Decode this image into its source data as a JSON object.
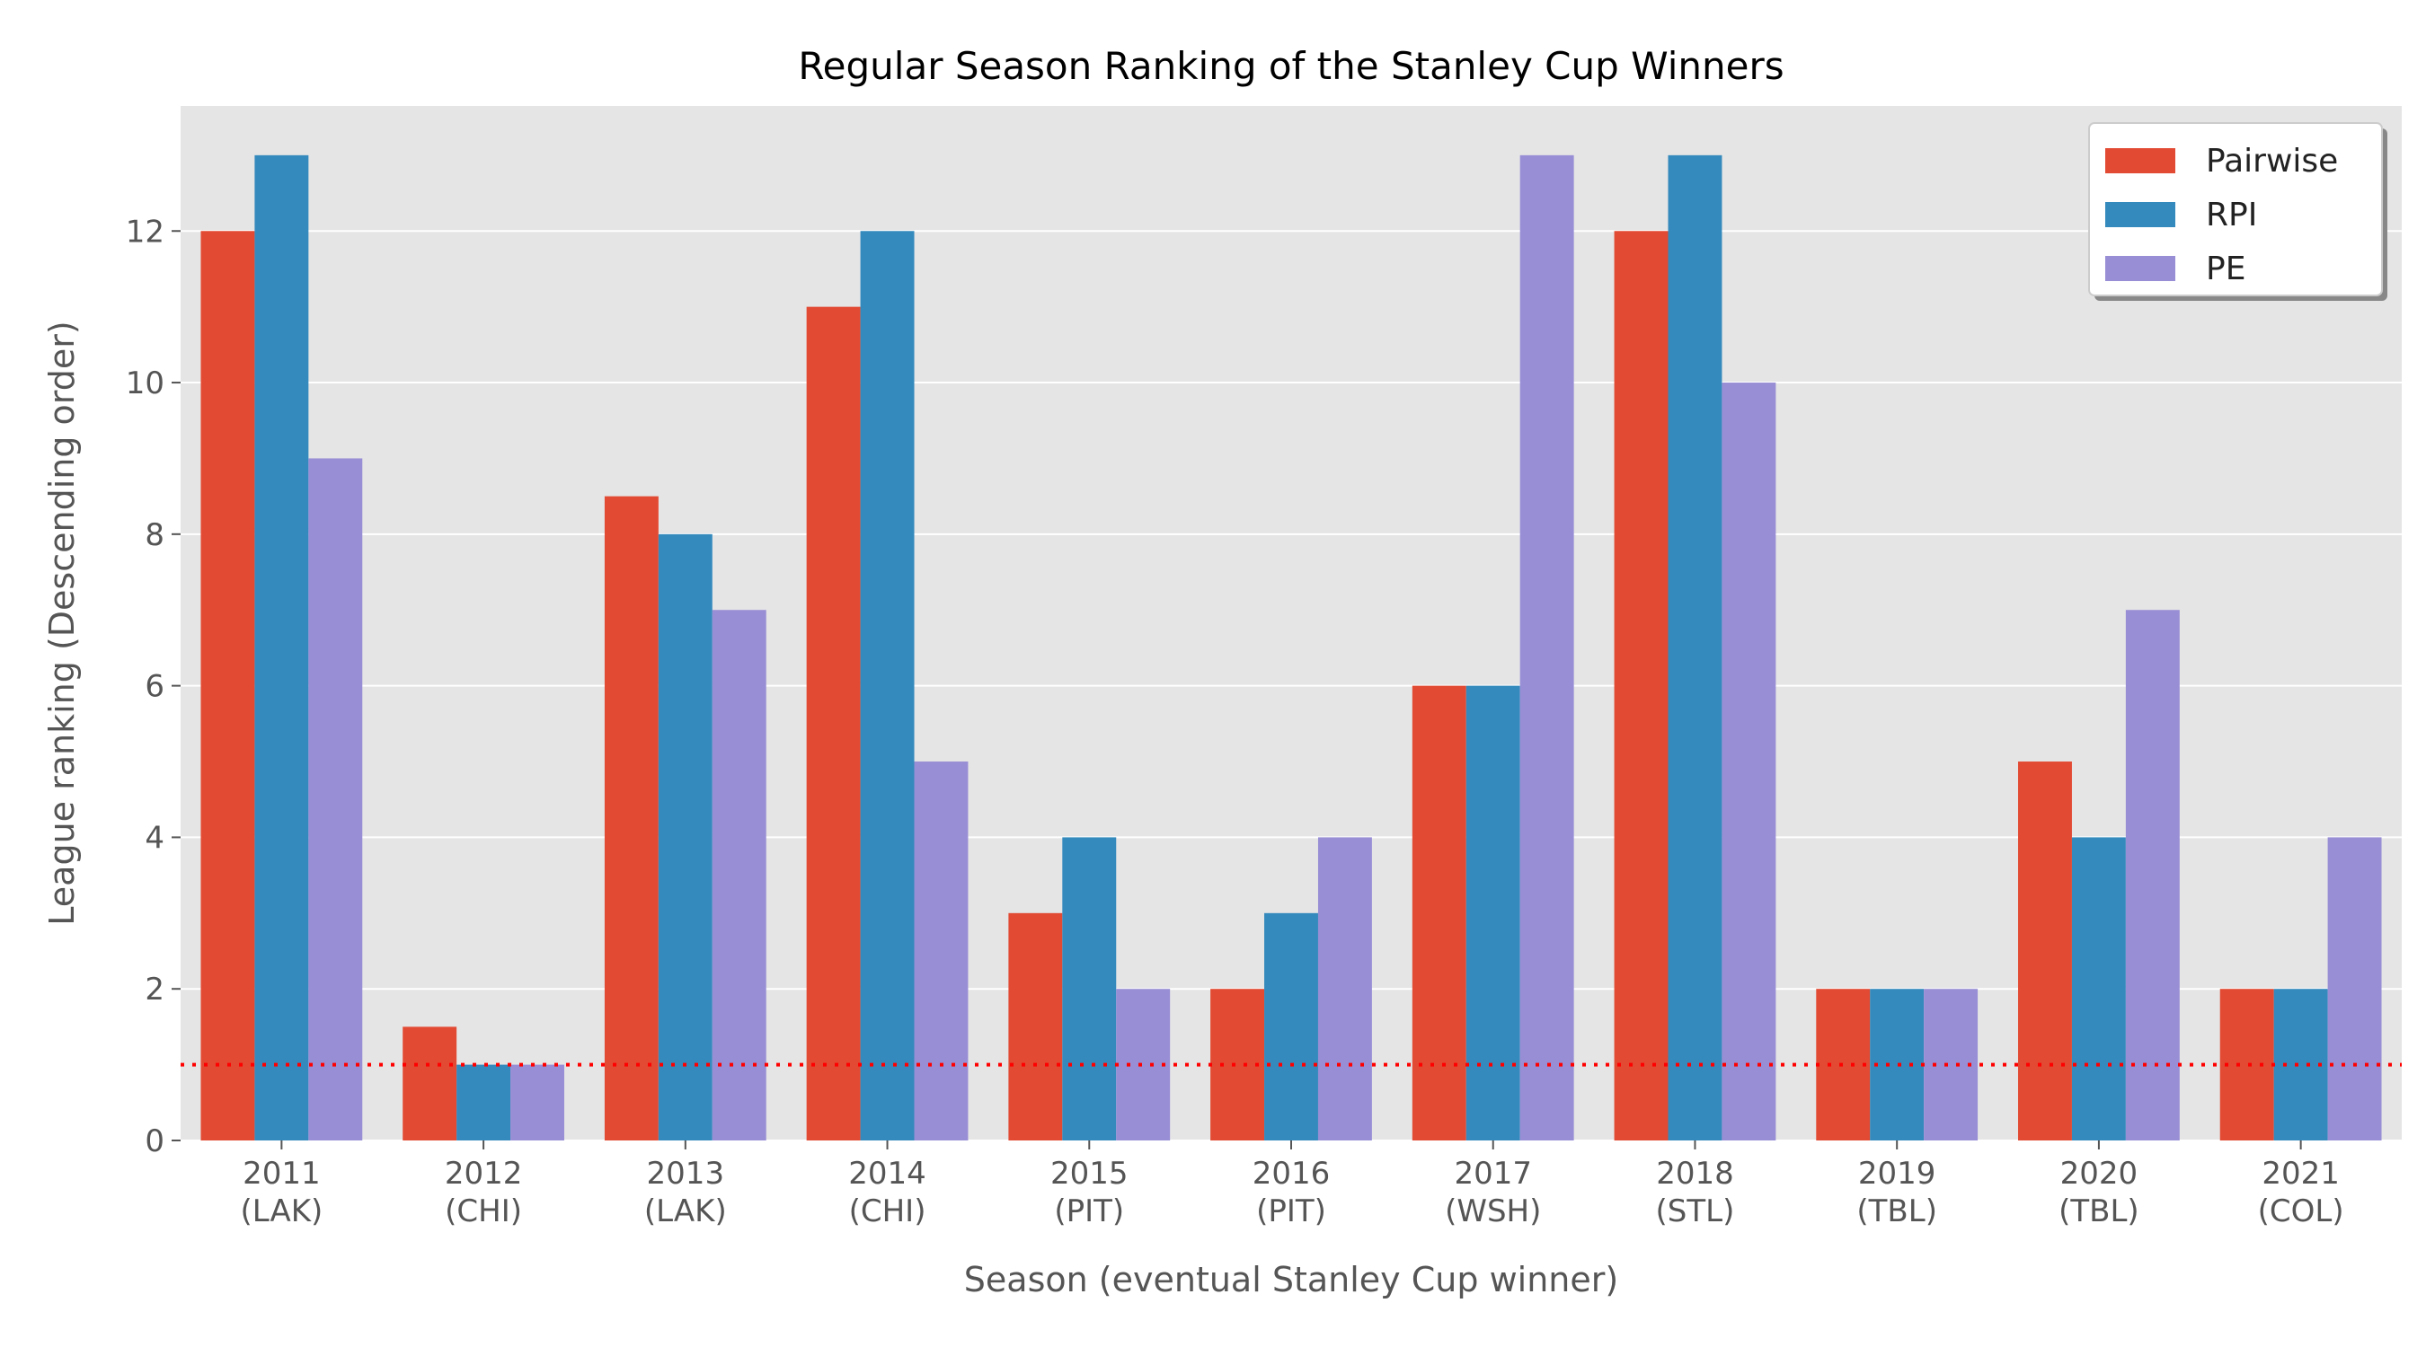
{
  "chart_data": {
    "type": "bar",
    "title": "Regular Season Ranking of the Stanley Cup Winners",
    "xlabel": "Season (eventual Stanley Cup winner)",
    "ylabel": "League ranking (Descending order)",
    "categories": [
      {
        "season": "2011",
        "team": "(LAK)"
      },
      {
        "season": "2012",
        "team": "(CHI)"
      },
      {
        "season": "2013",
        "team": "(LAK)"
      },
      {
        "season": "2014",
        "team": "(CHI)"
      },
      {
        "season": "2015",
        "team": "(PIT)"
      },
      {
        "season": "2016",
        "team": "(PIT)"
      },
      {
        "season": "2017",
        "team": "(WSH)"
      },
      {
        "season": "2018",
        "team": "(STL)"
      },
      {
        "season": "2019",
        "team": "(TBL)"
      },
      {
        "season": "2020",
        "team": "(TBL)"
      },
      {
        "season": "2021",
        "team": "(COL)"
      }
    ],
    "series": [
      {
        "name": "Pairwise",
        "color": "#E24A33",
        "values": [
          12,
          1.5,
          8.5,
          11,
          3,
          2,
          6,
          12,
          2,
          5,
          2
        ]
      },
      {
        "name": "RPI",
        "color": "#348ABD",
        "values": [
          13,
          1,
          8,
          12,
          4,
          3,
          6,
          13,
          2,
          4,
          2
        ]
      },
      {
        "name": "PE",
        "color": "#988ED5",
        "values": [
          9,
          1,
          7,
          5,
          2,
          4,
          13,
          10,
          2,
          7,
          4
        ]
      }
    ],
    "ylim": [
      0,
      13.65
    ],
    "yticks": [
      "0",
      "2",
      "4",
      "6",
      "8",
      "10",
      "12"
    ],
    "reference_line": {
      "y": 1,
      "color": "#ff0000",
      "style": "dotted"
    },
    "grid": true,
    "legend": "top-right",
    "background": "#E5E5E5"
  }
}
